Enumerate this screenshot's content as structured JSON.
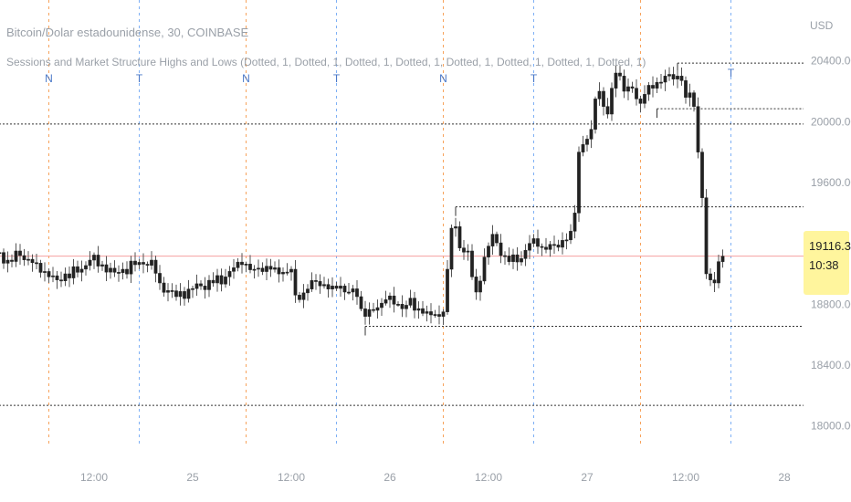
{
  "header": {
    "title": "Bitcoin/Dolar estadounidense, 30, COINBASE",
    "indicator": "Sessions and Market Structure Highs and Lows (Dotted, 1, Dotted, 1, Dotted, 1, Dotted, 1, Dotted, 1, Dotted, 1, Dotted, 1, Dotted, 1)"
  },
  "price_axis": {
    "currency": "USD",
    "current_price": "19116.31",
    "countdown": "10:38"
  },
  "colors": {
    "candle": "#222222",
    "wick": "#555555",
    "london_session": "#f7a35c",
    "newyork_session": "#7eb0f5",
    "session_marker": "#4a78c8",
    "structure_line": "#333333",
    "current_price_line": "#f4a0a0",
    "badge": "#fff59d",
    "axis_text": "#9aa0a8"
  },
  "chart_data": {
    "type": "candlestick",
    "symbol": "Bitcoin/Dolar estadounidense",
    "interval": "30",
    "exchange": "COINBASE",
    "ylim": [
      17800,
      20800
    ],
    "y_ticks": [
      18000,
      18400,
      18800,
      19200,
      19600,
      20000,
      20400
    ],
    "y_tick_labels": [
      "18000.00",
      "18400.00",
      "18800.00",
      "",
      "19600.00",
      "20000.00",
      "20400.00"
    ],
    "x_ticks": [
      {
        "label": "12:00",
        "t": 24
      },
      {
        "label": "25",
        "t": 48
      },
      {
        "label": "12:00",
        "t": 72
      },
      {
        "label": "26",
        "t": 96
      },
      {
        "label": "12:00",
        "t": 120
      },
      {
        "label": "27",
        "t": 144
      },
      {
        "label": "12:00",
        "t": 168
      },
      {
        "label": "28",
        "t": 192
      }
    ],
    "session_marker_labels": [
      "N",
      "T",
      "N",
      "T",
      "N",
      "T",
      "T"
    ],
    "sessions": {
      "london": [
        13,
        61,
        109,
        157
      ],
      "newyork": [
        35,
        83,
        131,
        179
      ]
    },
    "market_structure_levels": [
      {
        "price": 20385,
        "from": 166
      },
      {
        "price": 20085,
        "from": 161
      },
      {
        "price": 19985,
        "from": 0
      },
      {
        "price": 19440,
        "from": 112
      },
      {
        "price": 18655,
        "from": 90
      },
      {
        "price": 18135,
        "from": 0
      }
    ],
    "current_price": 19116.31,
    "anchors": [
      [
        0,
        19140
      ],
      [
        3,
        19090
      ],
      [
        6,
        19120
      ],
      [
        10,
        19070
      ],
      [
        13,
        18980
      ],
      [
        15,
        18960
      ],
      [
        17,
        19000
      ],
      [
        20,
        19010
      ],
      [
        23,
        19090
      ],
      [
        26,
        19060
      ],
      [
        29,
        19010
      ],
      [
        31,
        19030
      ],
      [
        34,
        19060
      ],
      [
        38,
        19090
      ],
      [
        40,
        18940
      ],
      [
        42,
        18890
      ],
      [
        44,
        18850
      ],
      [
        47,
        18900
      ],
      [
        50,
        18920
      ],
      [
        53,
        18940
      ],
      [
        56,
        18980
      ],
      [
        58,
        19040
      ],
      [
        60,
        19060
      ],
      [
        63,
        19030
      ],
      [
        66,
        19050
      ],
      [
        68,
        19040
      ],
      [
        70,
        19010
      ],
      [
        72,
        19030
      ],
      [
        73,
        18860
      ],
      [
        74,
        18830
      ],
      [
        76,
        18900
      ],
      [
        78,
        18950
      ],
      [
        80,
        18930
      ],
      [
        82,
        18920
      ],
      [
        84,
        18920
      ],
      [
        86,
        18880
      ],
      [
        88,
        18850
      ],
      [
        89,
        18770
      ],
      [
        90,
        18720
      ],
      [
        92,
        18760
      ],
      [
        95,
        18830
      ],
      [
        97,
        18800
      ],
      [
        99,
        18770
      ],
      [
        101,
        18840
      ],
      [
        102,
        18760
      ],
      [
        104,
        18740
      ],
      [
        106,
        18730
      ],
      [
        108,
        18720
      ],
      [
        109,
        18750
      ],
      [
        110,
        19030
      ],
      [
        111,
        19300
      ],
      [
        112,
        19310
      ],
      [
        113,
        19170
      ],
      [
        115,
        19150
      ],
      [
        116,
        18980
      ],
      [
        117,
        18880
      ],
      [
        119,
        19110
      ],
      [
        121,
        19260
      ],
      [
        123,
        19120
      ],
      [
        125,
        19080
      ],
      [
        128,
        19100
      ],
      [
        130,
        19200
      ],
      [
        132,
        19180
      ],
      [
        134,
        19160
      ],
      [
        136,
        19190
      ],
      [
        138,
        19220
      ],
      [
        140,
        19280
      ],
      [
        141,
        19400
      ],
      [
        142,
        19800
      ],
      [
        143,
        19850
      ],
      [
        145,
        19950
      ],
      [
        146,
        20150
      ],
      [
        147,
        20200
      ],
      [
        148,
        20100
      ],
      [
        149,
        20050
      ],
      [
        150,
        20220
      ],
      [
        151,
        20320
      ],
      [
        152,
        20300
      ],
      [
        153,
        20200
      ],
      [
        154,
        20230
      ],
      [
        155,
        20220
      ],
      [
        156,
        20150
      ],
      [
        157,
        20120
      ],
      [
        158,
        20180
      ],
      [
        160,
        20220
      ],
      [
        162,
        20260
      ],
      [
        163,
        20300
      ],
      [
        165,
        20280
      ],
      [
        166,
        20300
      ],
      [
        167,
        20270
      ],
      [
        168,
        20160
      ],
      [
        169,
        20190
      ],
      [
        170,
        20100
      ],
      [
        171,
        19800
      ],
      [
        172,
        19500
      ],
      [
        173,
        19000
      ],
      [
        174,
        18960
      ],
      [
        175,
        18940
      ],
      [
        176,
        19080
      ],
      [
        177,
        19116
      ]
    ]
  }
}
